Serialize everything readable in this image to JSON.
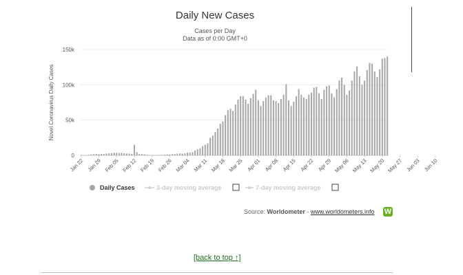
{
  "chart_data": {
    "type": "bar",
    "title": "Daily New Cases",
    "subtitle_lines": [
      "Cases per Day",
      "Data as of 0:00 GMT+0"
    ],
    "ylabel": "Novel Coronavirus Daily Cases",
    "ylim": [
      0,
      150000
    ],
    "yticks": [
      {
        "value": 0,
        "label": "0"
      },
      {
        "value": 50000,
        "label": "50k"
      },
      {
        "value": 100000,
        "label": "100k"
      },
      {
        "value": 150000,
        "label": "150k"
      }
    ],
    "start_date": "2020-01-22",
    "x_tick_labels": [
      "Jan 22",
      "Jan 29",
      "Feb 05",
      "Feb 12",
      "Feb 19",
      "Feb 26",
      "Mar 04",
      "Mar 11",
      "Mar 18",
      "Mar 25",
      "Apr 01",
      "Apr 08",
      "Apr 15",
      "Apr 22",
      "Apr 29",
      "May 06",
      "May 13",
      "May 20",
      "May 27",
      "Jun 03",
      "Jun 10"
    ],
    "grid": true,
    "bar_color": "#a6a6a6",
    "series": [
      {
        "name": "Daily Cases",
        "values": [
          600,
          100,
          600,
          800,
          1400,
          1800,
          2000,
          1700,
          2000,
          2100,
          2600,
          2800,
          3200,
          3900,
          3700,
          3200,
          3500,
          3000,
          2600,
          2500,
          2000,
          15000,
          4500,
          2100,
          1800,
          1700,
          1000,
          600,
          500,
          400,
          600,
          800,
          700,
          1000,
          1300,
          1300,
          1700,
          2000,
          2500,
          2700,
          2400,
          3000,
          4000,
          3900,
          4500,
          7000,
          8500,
          10000,
          13000,
          15000,
          17000,
          25000,
          28000,
          33000,
          38000,
          45000,
          48000,
          57000,
          64000,
          66000,
          63000,
          72000,
          79000,
          84000,
          84000,
          79000,
          73000,
          81000,
          87000,
          93000,
          78000,
          70000,
          77000,
          82000,
          85000,
          85000,
          78000,
          77000,
          74000,
          80000,
          86000,
          101000,
          78000,
          70000,
          76000,
          84000,
          94000,
          86000,
          82000,
          80000,
          86000,
          89000,
          96000,
          97000,
          88000,
          80000,
          93000,
          98000,
          99000,
          88000,
          82000,
          94000,
          106000,
          110000,
          100000,
          86000,
          92000,
          106000,
          119000,
          126000,
          112000,
          100000,
          106000,
          121000,
          131000,
          130000,
          119000,
          111000,
          122000,
          137000,
          138000,
          140000
        ]
      }
    ],
    "legend": {
      "placement": "bottom",
      "items": [
        {
          "label": "Daily Cases",
          "active": true
        },
        {
          "label": "3-day moving average",
          "active": false
        },
        {
          "label": "7-day moving average",
          "active": false
        }
      ]
    }
  },
  "source": {
    "prefix": "Source:",
    "name": "Worldometer",
    "separator": "-",
    "link": "www.worldometers.info",
    "logo_letter": "W"
  },
  "back_to_top": "[back to top ↑]"
}
